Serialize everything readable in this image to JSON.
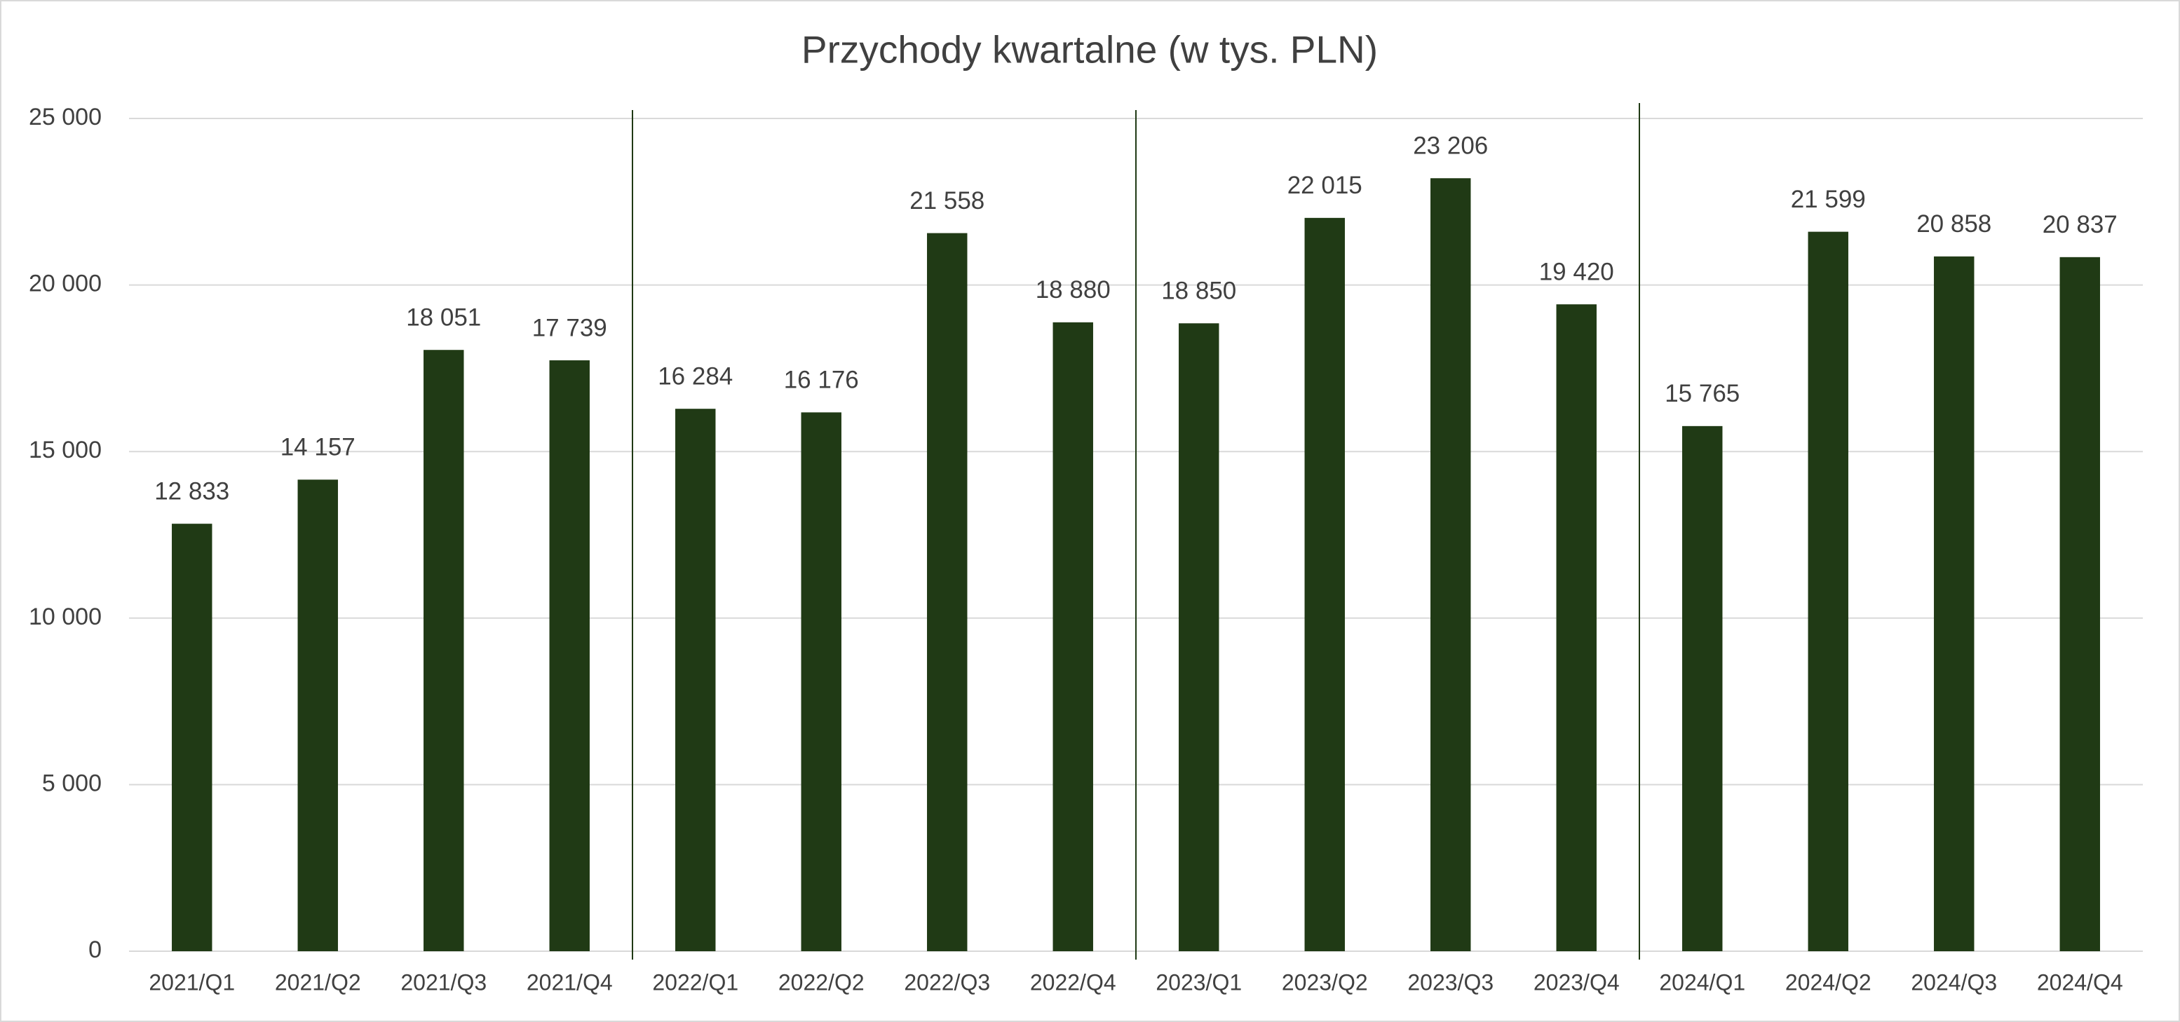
{
  "chart_data": {
    "type": "bar",
    "title": "Przychody kwartalne (w tys. PLN)",
    "categories": [
      "2021/Q1",
      "2021/Q2",
      "2021/Q3",
      "2021/Q4",
      "2022/Q1",
      "2022/Q2",
      "2022/Q3",
      "2022/Q4",
      "2023/Q1",
      "2023/Q2",
      "2023/Q3",
      "2023/Q4",
      "2024/Q1",
      "2024/Q2",
      "2024/Q3",
      "2024/Q4"
    ],
    "values": [
      12833,
      14157,
      18051,
      17739,
      16284,
      16176,
      21558,
      18880,
      18850,
      22015,
      23206,
      19420,
      15765,
      21599,
      20858,
      20837
    ],
    "value_labels": [
      "12 833",
      "14 157",
      "18 051",
      "17 739",
      "16 284",
      "16 176",
      "21 558",
      "18 880",
      "18 850",
      "22 015",
      "23 206",
      "19 420",
      "15 765",
      "21 599",
      "20 858",
      "20 837"
    ],
    "color": "#203a15",
    "ylim": [
      0,
      25000
    ],
    "yticks": [
      0,
      {
        "value": 5000,
        "label": "5 000"
      },
      {
        "value": 10000,
        "label": "10 000"
      },
      {
        "value": 15000,
        "label": "15 000"
      },
      {
        "value": 20000,
        "label": "20 000"
      },
      {
        "value": 25000,
        "label": "25 000"
      }
    ],
    "grid": true
  }
}
